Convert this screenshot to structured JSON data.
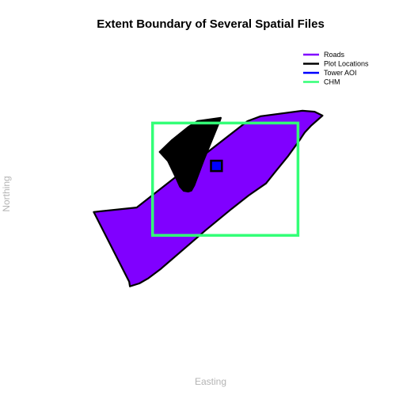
{
  "chart_data": {
    "type": "area",
    "title": "Extent Boundary of Several Spatial Files",
    "xlabel": "Easting",
    "ylabel": "Northing",
    "grid": false,
    "axes_visible": false,
    "legend_position": "top-right",
    "xlim": [
      0,
      100
    ],
    "ylim": [
      0,
      100
    ],
    "series": [
      {
        "name": "Roads",
        "color": "#8000ff",
        "fill": "#8000ff",
        "outline": "#000000",
        "kind": "polygon",
        "points": [
          [
            30.4,
            49.5
          ],
          [
            42.4,
            60.4
          ],
          [
            59.8,
            76.1
          ],
          [
            63.3,
            77.6
          ],
          [
            74.4,
            79.3
          ],
          [
            77.6,
            79.0
          ],
          [
            79.7,
            77.8
          ],
          [
            76.6,
            74.6
          ],
          [
            75.0,
            72.6
          ],
          [
            73.6,
            70.2
          ],
          [
            70.6,
            65.4
          ],
          [
            67.1,
            60.4
          ],
          [
            64.7,
            56.9
          ],
          [
            60.1,
            53.2
          ],
          [
            55.6,
            49.1
          ],
          [
            48.6,
            42.4
          ],
          [
            43.7,
            37.5
          ],
          [
            38.4,
            32.2
          ],
          [
            36.6,
            30.4
          ],
          [
            33.5,
            27.7
          ],
          [
            31.1,
            26.1
          ],
          [
            28.6,
            25.2
          ],
          [
            28.4,
            26.6
          ],
          [
            19.0,
            48.1
          ]
        ]
      },
      {
        "name": "Plot Locations",
        "color": "#000000",
        "fill": "#000000",
        "outline": "#000000",
        "kind": "polygon",
        "points": [
          [
            36.5,
            66.6
          ],
          [
            39.8,
            70.3
          ],
          [
            44.2,
            74.4
          ],
          [
            46.5,
            76.1
          ],
          [
            52.7,
            77.1
          ],
          [
            52.5,
            76.4
          ],
          [
            48.1,
            63.9
          ],
          [
            45.7,
            56.4
          ],
          [
            44.9,
            54.7
          ],
          [
            44.1,
            54.4
          ],
          [
            42.9,
            54.6
          ],
          [
            41.9,
            55.9
          ],
          [
            40.7,
            59.0
          ],
          [
            38.7,
            63.8
          ]
        ]
      },
      {
        "name": "Tower AOI",
        "color": "#0000ff",
        "fill": "#0000ff",
        "outline": "#000000",
        "kind": "rectangle",
        "x": [
          50.1,
          53.0
        ],
        "y": [
          60.7,
          63.9
        ]
      },
      {
        "name": "CHM",
        "color": "#33ff77",
        "fill": "none",
        "outline": "#33ff77",
        "kind": "rectangle",
        "x": [
          34.6,
          73.2
        ],
        "y": [
          40.9,
          75.5
        ]
      }
    ]
  }
}
